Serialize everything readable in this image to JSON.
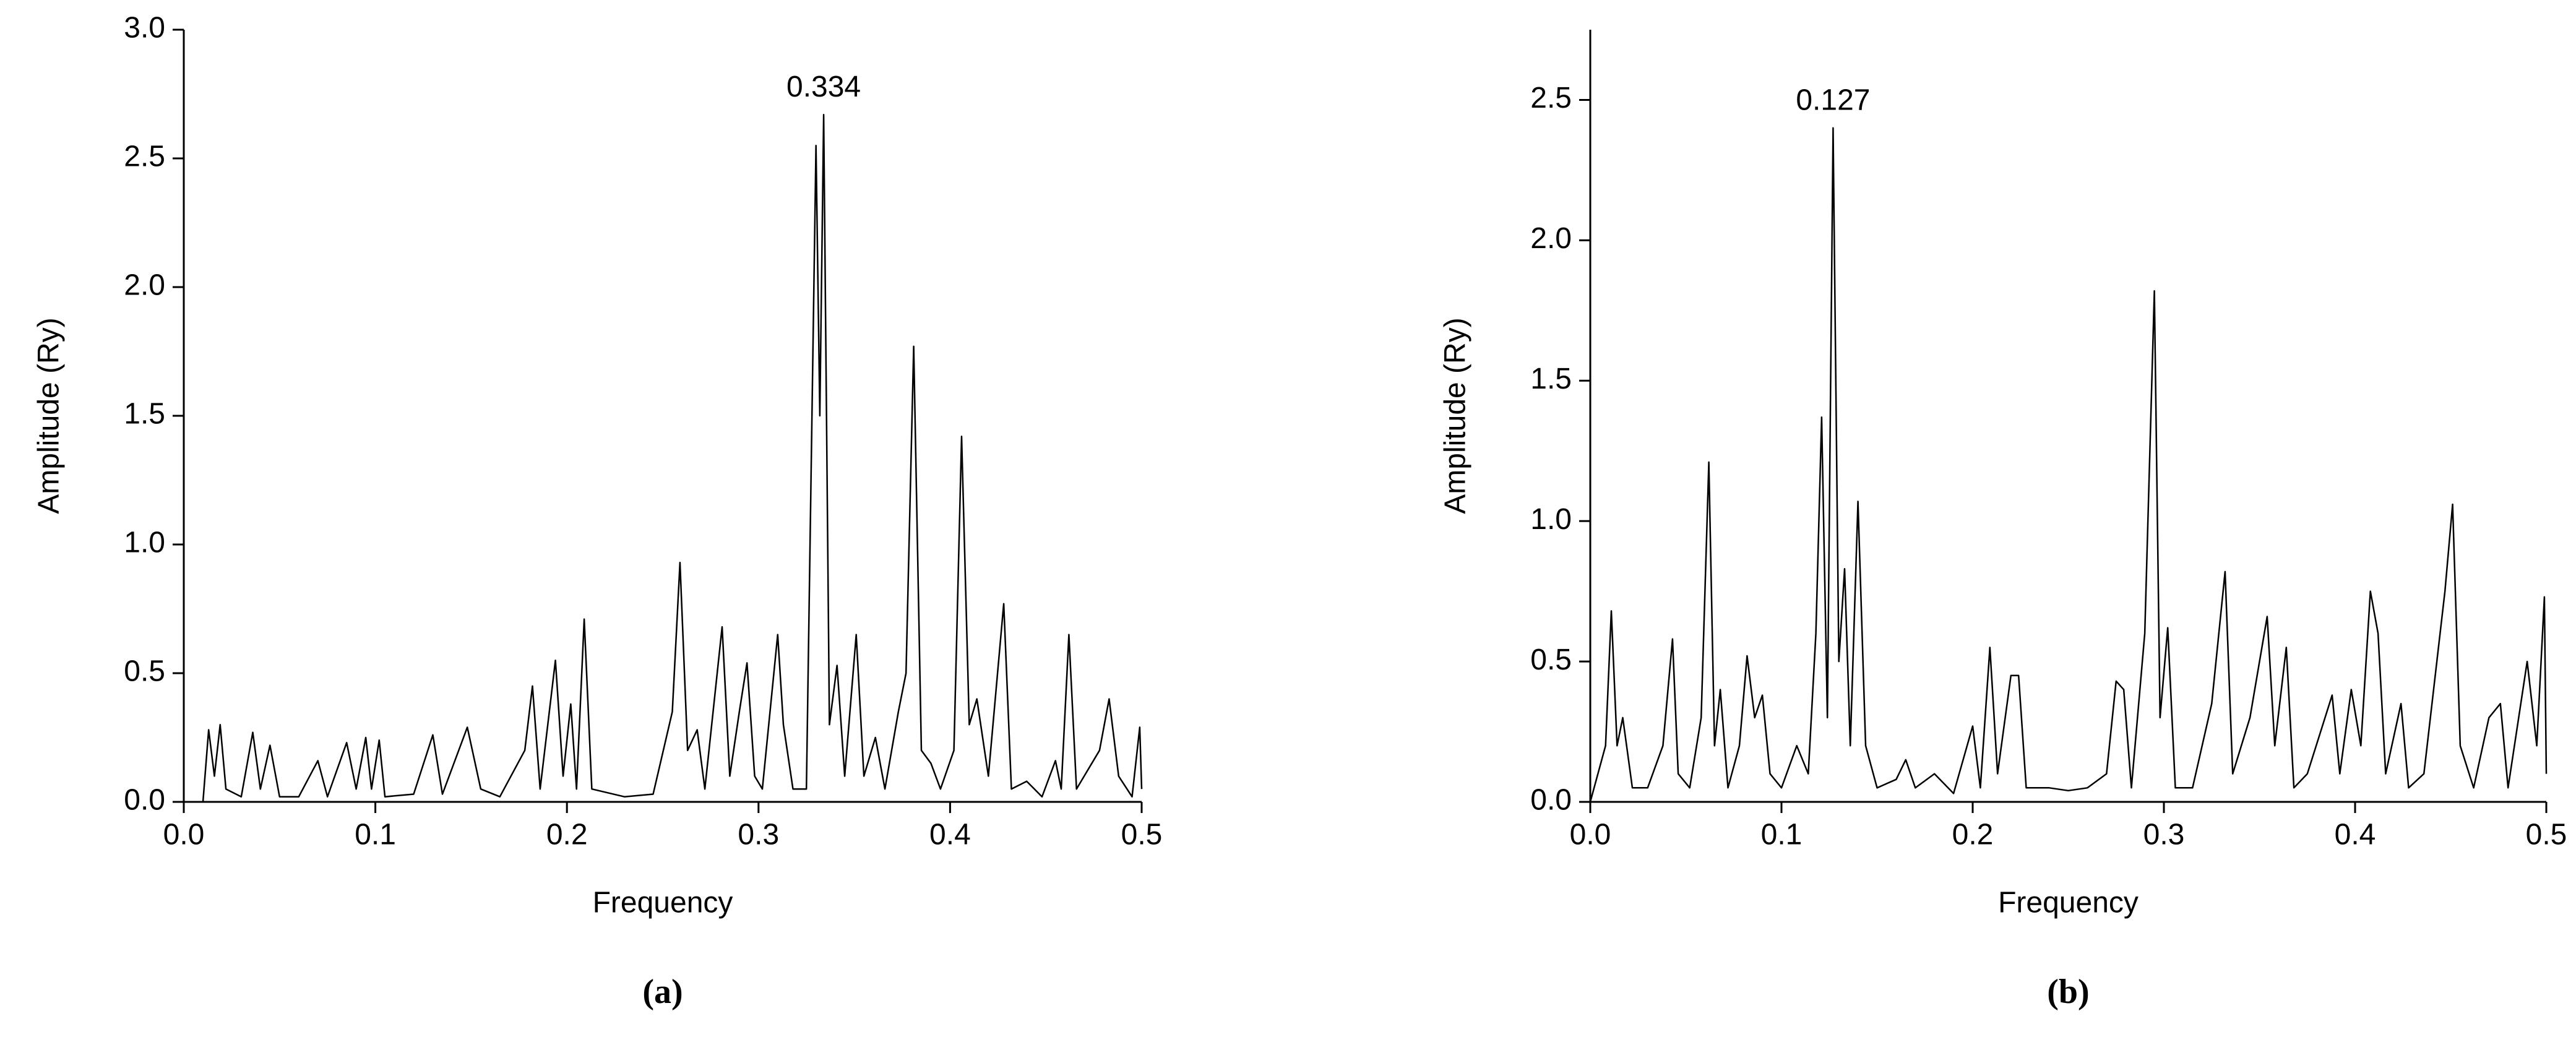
{
  "chart_data": [
    {
      "type": "line",
      "annotation": "0.334",
      "xlabel": "Frequency",
      "ylabel": "Amplitude (Ry)",
      "caption": "(a)",
      "color": "#000000",
      "xlim": [
        0,
        0.5
      ],
      "xticks": [
        {
          "value": 0,
          "label": "0.0"
        },
        0.1,
        0.2,
        0.3,
        0.4,
        0.5
      ],
      "ylim": [
        0,
        3
      ],
      "yticks": [
        {
          "value": 0,
          "label": "0.0"
        },
        0.5,
        {
          "value": 1,
          "label": "1.0"
        },
        1.5,
        {
          "value": 2,
          "label": "2.0"
        },
        2.5,
        {
          "value": 3,
          "label": "3.0"
        }
      ],
      "x": [
        0.01,
        0.013,
        0.016,
        0.019,
        0.022,
        0.03,
        0.036,
        0.04,
        0.045,
        0.05,
        0.06,
        0.07,
        0.075,
        0.085,
        0.09,
        0.095,
        0.098,
        0.102,
        0.105,
        0.12,
        0.13,
        0.135,
        0.148,
        0.155,
        0.165,
        0.178,
        0.182,
        0.186,
        0.194,
        0.198,
        0.202,
        0.205,
        0.209,
        0.213,
        0.23,
        0.245,
        0.255,
        0.259,
        0.263,
        0.268,
        0.272,
        0.281,
        0.285,
        0.29,
        0.294,
        0.298,
        0.302,
        0.31,
        0.313,
        0.318,
        0.325,
        0.33,
        0.332,
        0.334,
        0.337,
        0.341,
        0.345,
        0.351,
        0.355,
        0.361,
        0.366,
        0.373,
        0.377,
        0.381,
        0.385,
        0.39,
        0.395,
        0.402,
        0.406,
        0.41,
        0.414,
        0.42,
        0.428,
        0.432,
        0.44,
        0.448,
        0.455,
        0.458,
        0.462,
        0.466,
        0.47,
        0.478,
        0.483,
        0.488,
        0.495,
        0.499,
        0.5
      ],
      "values": [
        0,
        0.28,
        0.1,
        0.3,
        0.05,
        0.02,
        0.27,
        0.05,
        0.22,
        0.02,
        0.02,
        0.16,
        0.02,
        0.23,
        0.05,
        0.25,
        0.05,
        0.24,
        0.02,
        0.03,
        0.26,
        0.03,
        0.29,
        0.05,
        0.02,
        0.2,
        0.45,
        0.05,
        0.55,
        0.1,
        0.38,
        0.05,
        0.71,
        0.05,
        0.02,
        0.03,
        0.35,
        0.93,
        0.2,
        0.28,
        0.05,
        0.68,
        0.1,
        0.35,
        0.54,
        0.1,
        0.05,
        0.65,
        0.3,
        0.05,
        0.05,
        2.55,
        1.5,
        2.67,
        0.3,
        0.53,
        0.1,
        0.65,
        0.1,
        0.25,
        0.05,
        0.35,
        0.5,
        1.77,
        0.2,
        0.15,
        0.05,
        0.2,
        1.42,
        0.3,
        0.4,
        0.1,
        0.77,
        0.05,
        0.08,
        0.02,
        0.16,
        0.05,
        0.65,
        0.05,
        0.1,
        0.2,
        0.4,
        0.1,
        0.02,
        0.29,
        0.05
      ]
    },
    {
      "type": "line",
      "annotation": "0.127",
      "xlabel": "Frequency",
      "ylabel": "Amplitude (Ry)",
      "caption": "(b)",
      "color": "#000000",
      "xlim": [
        0,
        0.5
      ],
      "xticks": [
        {
          "value": 0,
          "label": "0.0"
        },
        0.1,
        0.2,
        0.3,
        0.4,
        0.5
      ],
      "ylim": [
        0,
        2.75
      ],
      "yticks": [
        {
          "value": 0,
          "label": "0.0"
        },
        0.5,
        {
          "value": 1,
          "label": "1.0"
        },
        1.5,
        {
          "value": 2,
          "label": "2.0"
        },
        2.5
      ],
      "x": [
        0,
        0.008,
        0.011,
        0.014,
        0.017,
        0.022,
        0.03,
        0.038,
        0.043,
        0.046,
        0.052,
        0.058,
        0.062,
        0.065,
        0.068,
        0.072,
        0.078,
        0.082,
        0.086,
        0.09,
        0.094,
        0.1,
        0.108,
        0.114,
        0.118,
        0.121,
        0.124,
        0.127,
        0.13,
        0.133,
        0.136,
        0.14,
        0.144,
        0.15,
        0.16,
        0.165,
        0.17,
        0.18,
        0.19,
        0.2,
        0.204,
        0.209,
        0.213,
        0.22,
        0.224,
        0.228,
        0.24,
        0.25,
        0.26,
        0.27,
        0.275,
        0.279,
        0.283,
        0.29,
        0.295,
        0.298,
        0.302,
        0.306,
        0.315,
        0.325,
        0.332,
        0.336,
        0.345,
        0.354,
        0.358,
        0.364,
        0.368,
        0.375,
        0.388,
        0.392,
        0.398,
        0.403,
        0.408,
        0.412,
        0.416,
        0.424,
        0.428,
        0.436,
        0.447,
        0.451,
        0.455,
        0.462,
        0.47,
        0.476,
        0.48,
        0.49,
        0.495,
        0.499,
        0.5
      ],
      "values": [
        0,
        0.2,
        0.68,
        0.2,
        0.3,
        0.05,
        0.05,
        0.2,
        0.58,
        0.1,
        0.05,
        0.3,
        1.21,
        0.2,
        0.4,
        0.05,
        0.2,
        0.52,
        0.3,
        0.38,
        0.1,
        0.05,
        0.2,
        0.1,
        0.6,
        1.37,
        0.3,
        2.4,
        0.5,
        0.83,
        0.2,
        1.07,
        0.2,
        0.05,
        0.08,
        0.15,
        0.05,
        0.1,
        0.03,
        0.27,
        0.05,
        0.55,
        0.1,
        0.45,
        0.45,
        0.05,
        0.05,
        0.04,
        0.05,
        0.1,
        0.43,
        0.4,
        0.05,
        0.6,
        1.82,
        0.3,
        0.62,
        0.05,
        0.05,
        0.35,
        0.82,
        0.1,
        0.3,
        0.66,
        0.2,
        0.55,
        0.05,
        0.1,
        0.38,
        0.1,
        0.4,
        0.2,
        0.75,
        0.6,
        0.1,
        0.35,
        0.05,
        0.1,
        0.75,
        1.06,
        0.2,
        0.05,
        0.3,
        0.35,
        0.05,
        0.5,
        0.2,
        0.73,
        0.1
      ]
    }
  ]
}
